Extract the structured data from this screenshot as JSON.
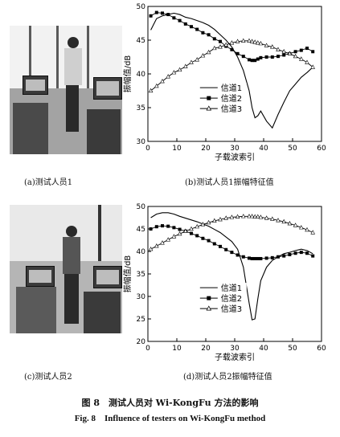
{
  "subcaptions": {
    "a": "(a)测试人员1",
    "b": "(b)测试人员1振幅特征值",
    "c": "(c)测试人员2",
    "d": "(d)测试人员2振幅特征值"
  },
  "figure_caption_zh": "图 8　测试人员对 Wi-KongFu 方法的影响",
  "figure_caption_en": "Fig. 8　Influence of testers on Wi-KongFu method",
  "chart_data": [
    {
      "type": "line",
      "xlabel": "子载波索引",
      "ylabel": "振幅值/dB",
      "xlim": [
        0,
        60
      ],
      "ylim": [
        30,
        50
      ],
      "xticks": [
        0,
        10,
        20,
        30,
        40,
        50,
        60
      ],
      "yticks": [
        30,
        35,
        40,
        45,
        50
      ],
      "legend_position": "bottom-center",
      "x": [
        1,
        3,
        5,
        7,
        9,
        11,
        13,
        15,
        17,
        19,
        21,
        23,
        25,
        27,
        29,
        31,
        33,
        35,
        36,
        37,
        38,
        39,
        41,
        43,
        45,
        47,
        49,
        51,
        53,
        55,
        57
      ],
      "series": [
        {
          "name": "信道1",
          "marker": "none",
          "values": [
            46.5,
            48.2,
            48.6,
            48.8,
            49.0,
            48.8,
            48.4,
            48.2,
            47.9,
            47.6,
            47.2,
            46.6,
            45.8,
            45.0,
            44.0,
            42.5,
            40.5,
            37.5,
            35.0,
            33.5,
            33.8,
            34.5,
            33.0,
            32.0,
            34.0,
            35.8,
            37.5,
            38.5,
            39.5,
            40.2,
            41.0
          ]
        },
        {
          "name": "信道2",
          "marker": "square",
          "values": [
            48.6,
            49.1,
            49.0,
            48.8,
            48.3,
            47.9,
            47.4,
            47.0,
            46.6,
            46.1,
            45.8,
            45.2,
            44.8,
            44.1,
            43.6,
            43.0,
            42.6,
            42.1,
            42.0,
            42.0,
            42.2,
            42.4,
            42.5,
            42.5,
            42.6,
            42.8,
            43.0,
            43.3,
            43.5,
            43.8,
            43.3
          ]
        },
        {
          "name": "信道3",
          "marker": "triangle",
          "values": [
            37.5,
            38.2,
            38.9,
            39.6,
            40.2,
            40.6,
            41.1,
            41.7,
            42.1,
            42.7,
            43.2,
            43.8,
            44.0,
            44.3,
            44.6,
            44.8,
            44.9,
            44.9,
            44.8,
            44.7,
            44.6,
            44.5,
            44.2,
            44.0,
            43.6,
            43.3,
            43.0,
            42.6,
            42.2,
            41.7,
            41.0
          ]
        }
      ]
    },
    {
      "type": "line",
      "xlabel": "子载波索引",
      "ylabel": "振幅值/dB",
      "xlim": [
        0,
        60
      ],
      "ylim": [
        20,
        50
      ],
      "xticks": [
        0,
        10,
        20,
        30,
        40,
        50,
        60
      ],
      "yticks": [
        20,
        25,
        30,
        35,
        40,
        45,
        50
      ],
      "legend_position": "bottom-center",
      "x": [
        1,
        3,
        5,
        7,
        9,
        11,
        13,
        15,
        17,
        19,
        21,
        23,
        25,
        27,
        29,
        31,
        33,
        35,
        36,
        37,
        38,
        39,
        41,
        43,
        45,
        47,
        49,
        51,
        53,
        55,
        57
      ],
      "series": [
        {
          "name": "信道1",
          "marker": "none",
          "values": [
            47.5,
            48.3,
            48.6,
            48.6,
            48.3,
            47.8,
            47.4,
            47.0,
            46.6,
            46.1,
            45.6,
            44.9,
            44.2,
            43.2,
            42.2,
            40.5,
            36.5,
            28.5,
            24.8,
            25.0,
            29.5,
            33.5,
            36.5,
            38.0,
            38.8,
            39.5,
            39.8,
            40.2,
            40.5,
            40.2,
            39.5
          ]
        },
        {
          "name": "信道2",
          "marker": "square",
          "values": [
            45.0,
            45.5,
            45.7,
            45.6,
            45.3,
            44.9,
            44.5,
            44.0,
            43.5,
            42.9,
            42.4,
            41.7,
            41.1,
            40.4,
            39.8,
            39.2,
            38.8,
            38.5,
            38.4,
            38.4,
            38.4,
            38.4,
            38.5,
            38.6,
            38.8,
            39.0,
            39.3,
            39.6,
            39.8,
            39.6,
            39.0
          ]
        },
        {
          "name": "信道3",
          "marker": "triangle",
          "values": [
            40.5,
            41.2,
            41.9,
            42.6,
            43.3,
            43.9,
            44.5,
            45.0,
            45.5,
            46.0,
            46.4,
            46.8,
            47.1,
            47.4,
            47.6,
            47.7,
            47.8,
            47.8,
            47.8,
            47.7,
            47.7,
            47.6,
            47.4,
            47.2,
            46.9,
            46.6,
            46.2,
            45.8,
            45.3,
            44.8,
            44.2
          ]
        }
      ]
    }
  ]
}
